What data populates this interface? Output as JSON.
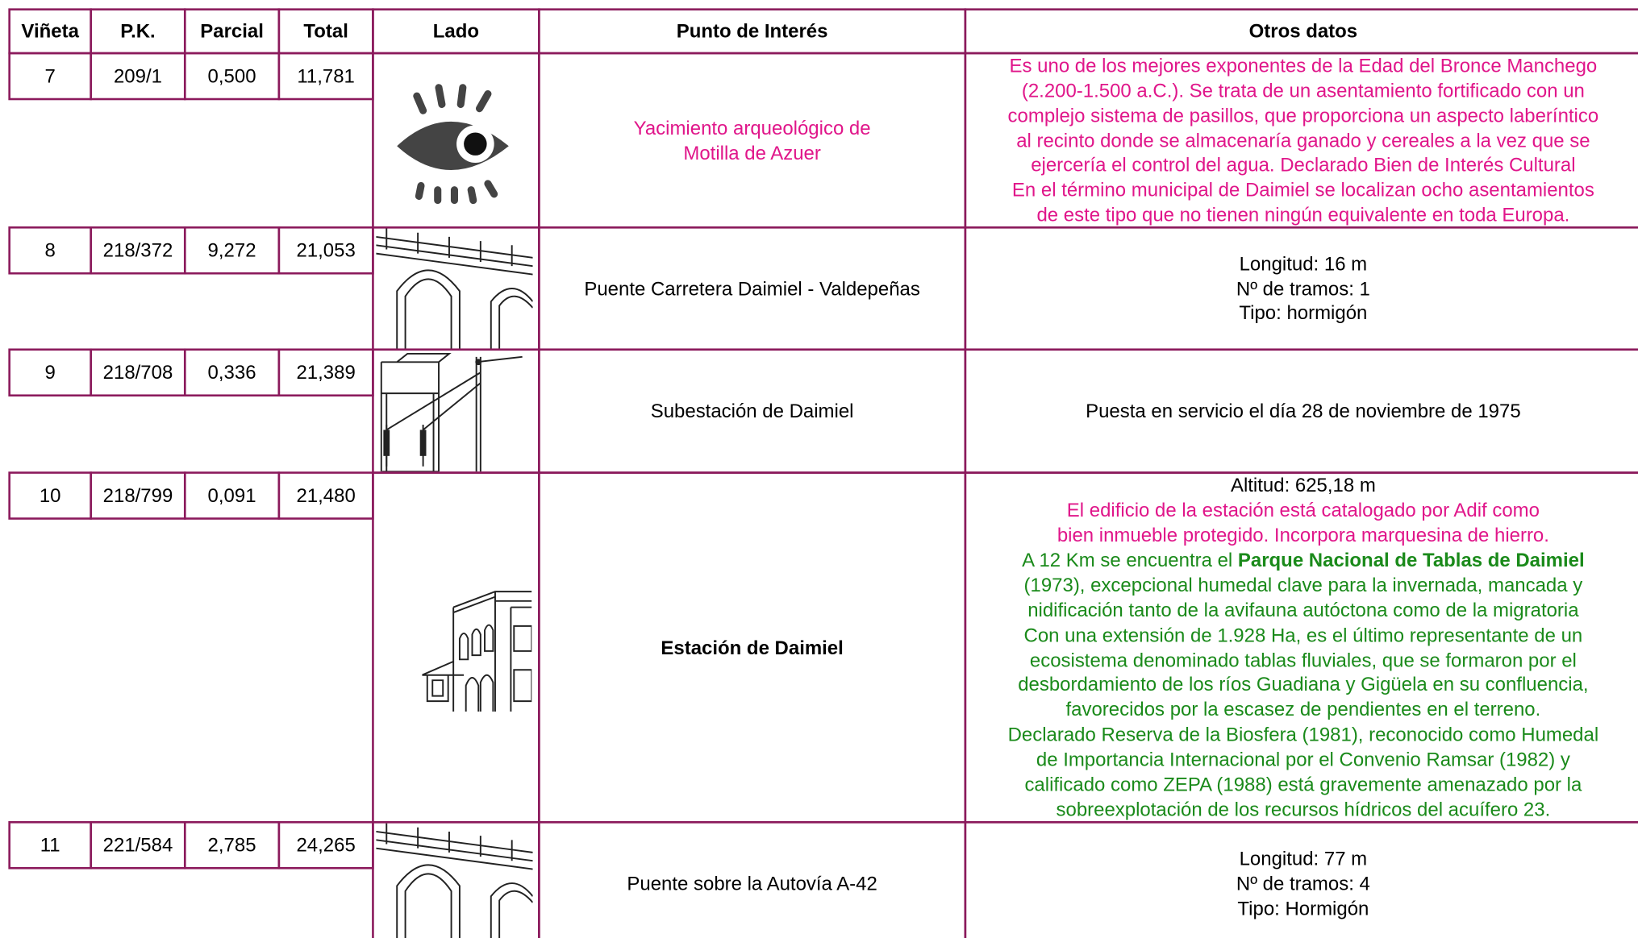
{
  "table": {
    "headers": [
      "Viñeta",
      "P.K.",
      "Parcial",
      "Total",
      "Lado",
      "Punto de Interés",
      "Otros datos"
    ],
    "rows": [
      {
        "cells": [
          "7",
          "209/1",
          "0,500",
          "11,781"
        ],
        "punto": {
          "color": "#e0168a",
          "bold": false,
          "lines": [
            "Yacimiento arqueológico de",
            "Motilla de Azuer"
          ]
        },
        "otros": [
          {
            "color": "#e0168a",
            "parts": [
              {
                "text": "Es uno de los mejores exponentes de la Edad del Bronce Manchego"
              }
            ]
          },
          {
            "color": "#e0168a",
            "parts": [
              {
                "text": "(2.200-1.500 a.C.). Se trata de un asentamiento fortificado con un"
              }
            ]
          },
          {
            "color": "#e0168a",
            "parts": [
              {
                "text": "complejo sistema de pasillos, que proporciona un aspecto laberíntico"
              }
            ]
          },
          {
            "color": "#e0168a",
            "parts": [
              {
                "text": "al recinto donde se almacenaría ganado y cereales a la vez que se"
              }
            ]
          },
          {
            "color": "#e0168a",
            "parts": [
              {
                "text": "ejercería el control del agua. Declarado Bien de Interés Cultural"
              }
            ]
          },
          {
            "color": "#e0168a",
            "parts": [
              {
                "text": "En el término municipal de Daimiel se localizan ocho asentamientos"
              }
            ]
          },
          {
            "color": "#e0168a",
            "parts": [
              {
                "text": "de este tipo que no tienen ningún equivalente en toda Europa."
              }
            ]
          }
        ]
      },
      {
        "cells": [
          "8",
          "218/372",
          "9,272",
          "21,053"
        ],
        "punto": {
          "color": "#000000",
          "bold": false,
          "lines": [
            "Puente Carretera Daimiel - Valdepeñas"
          ]
        },
        "otros": [
          {
            "color": "#000000",
            "parts": [
              {
                "text": "Longitud: 16 m"
              }
            ]
          },
          {
            "color": "#000000",
            "parts": [
              {
                "text": "Nº de tramos: 1"
              }
            ]
          },
          {
            "color": "#000000",
            "parts": [
              {
                "text": "Tipo: hormigón"
              }
            ]
          }
        ]
      },
      {
        "cells": [
          "9",
          "218/708",
          "0,336",
          "21,389"
        ],
        "punto": {
          "color": "#000000",
          "bold": false,
          "lines": [
            "Subestación de Daimiel"
          ]
        },
        "otros": [
          {
            "color": "#000000",
            "parts": [
              {
                "text": "Puesta en servicio el día 28 de noviembre de 1975"
              }
            ]
          }
        ]
      },
      {
        "cells": [
          "10",
          "218/799",
          "0,091",
          "21,480"
        ],
        "punto": {
          "color": "#000000",
          "bold": true,
          "lines": [
            "Estación de Daimiel"
          ]
        },
        "otros": [
          {
            "color": "#000000",
            "parts": [
              {
                "text": "Altitud: 625,18 m"
              }
            ]
          },
          {
            "color": "#e0168a",
            "parts": [
              {
                "text": "El edificio de la estación está catalogado por Adif como"
              }
            ]
          },
          {
            "color": "#e0168a",
            "parts": [
              {
                "text": "bien inmueble protegido. Incorpora marquesina de hierro."
              }
            ]
          },
          {
            "color": "#1a8a1a",
            "parts": [
              {
                "text": "A 12 Km se encuentra el "
              },
              {
                "text": "Parque Nacional de Tablas de Daimiel",
                "bold": true
              }
            ]
          },
          {
            "color": "#1a8a1a",
            "parts": [
              {
                "text": "(1973), excepcional humedal clave para la invernada, mancada y"
              }
            ]
          },
          {
            "color": "#1a8a1a",
            "parts": [
              {
                "text": "nidificación tanto de la avifauna autóctona como de la migratoria"
              }
            ]
          },
          {
            "color": "#1a8a1a",
            "parts": [
              {
                "text": "Con una extensión de 1.928 Ha, es el último representante de un"
              }
            ]
          },
          {
            "color": "#1a8a1a",
            "parts": [
              {
                "text": "ecosistema denominado tablas fluviales, que se formaron por el"
              }
            ]
          },
          {
            "color": "#1a8a1a",
            "parts": [
              {
                "text": "desbordamiento de los ríos Guadiana y Gigüela en su confluencia,"
              }
            ]
          },
          {
            "color": "#1a8a1a",
            "parts": [
              {
                "text": "favorecidos por la escasez de pendientes en el terreno."
              }
            ]
          },
          {
            "color": "#1a8a1a",
            "parts": [
              {
                "text": "Declarado Reserva de la Biosfera (1981), reconocido como Humedal"
              }
            ]
          },
          {
            "color": "#1a8a1a",
            "parts": [
              {
                "text": "de Importancia Internacional por el Convenio Ramsar (1982) y"
              }
            ]
          },
          {
            "color": "#1a8a1a",
            "parts": [
              {
                "text": "calificado como ZEPA (1988) está gravemente amenazado por la"
              }
            ]
          },
          {
            "color": "#1a8a1a",
            "parts": [
              {
                "text": "sobreexplotación de los recursos hídricos del acuífero 23."
              }
            ]
          }
        ]
      },
      {
        "cells": [
          "11",
          "221/584",
          "2,785",
          "24,265"
        ],
        "punto": {
          "color": "#000000",
          "bold": false,
          "lines": [
            "Puente sobre la Autovía A-42"
          ]
        },
        "otros": [
          {
            "color": "#000000",
            "parts": [
              {
                "text": "Longitud: 77 m"
              }
            ]
          },
          {
            "color": "#000000",
            "parts": [
              {
                "text": "Nº de tramos: 4"
              }
            ]
          },
          {
            "color": "#000000",
            "parts": [
              {
                "text": "Tipo: Hormigón"
              }
            ]
          }
        ]
      }
    ]
  }
}
